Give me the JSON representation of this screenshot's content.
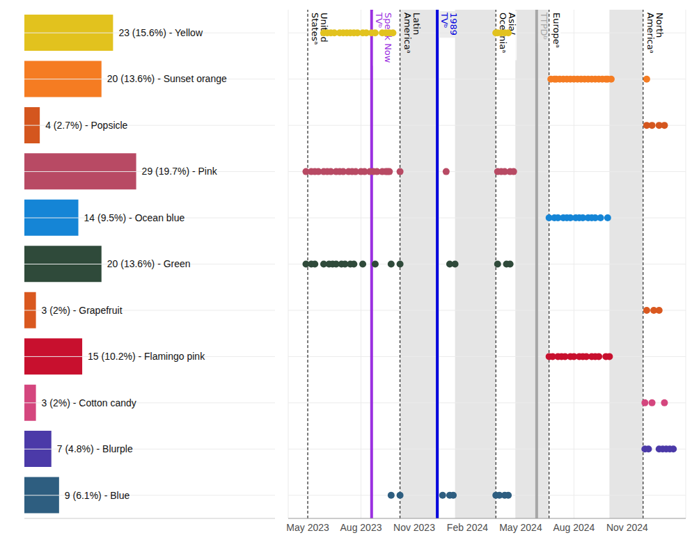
{
  "chart_data": [
    {
      "type": "bar",
      "orientation": "horizontal",
      "data_labels": true,
      "tick_labels": false,
      "grid": true,
      "categories": [
        "Yellow",
        "Sunset orange",
        "Popsicle",
        "Pink",
        "Ocean blue",
        "Green",
        "Grapefruit",
        "Flamingo pink",
        "Cotton candy",
        "Blurple",
        "Blue"
      ],
      "values": [
        23,
        20,
        4,
        29,
        14,
        20,
        3,
        15,
        3,
        7,
        9
      ],
      "value_labels": [
        "23 (15.6%) - Yellow",
        "20 (13.6%) - Sunset orange",
        "4 (2.7%) - Popsicle",
        "29 (19.7%) - Pink",
        "14 (9.5%) - Ocean blue",
        "20 (13.6%) - Green",
        "3 (2%) - Grapefruit",
        "15 (10.2%) - Flamingo pink",
        "3 (2%) - Cotton candy",
        "7 (4.8%) - Blurple",
        "9 (6.1%) - Blue"
      ],
      "colors": [
        "#e2c21e",
        "#f57c22",
        "#d4561e",
        "#b84a64",
        "#1585d6",
        "#2f4a3a",
        "#d9581f",
        "#c8102e",
        "#d4467e",
        "#4b3aa8",
        "#2e5e80"
      ],
      "xlim": [
        0,
        65
      ]
    },
    {
      "type": "scatter",
      "grid": true,
      "tick_labels": "x",
      "xlim": [
        2.9,
        25.3
      ],
      "xticks": [
        {
          "value": 4,
          "label": "May 2023"
        },
        {
          "value": 7,
          "label": "Aug 2023"
        },
        {
          "value": 10,
          "label": "Nov 2023"
        },
        {
          "value": 13,
          "label": "Feb 2024"
        },
        {
          "value": 16,
          "label": "May 2024"
        },
        {
          "value": 19,
          "label": "Aug 2024"
        },
        {
          "value": 22,
          "label": "Nov 2024"
        }
      ],
      "series": [
        {
          "name": "Yellow",
          "color": "#e2c21e",
          "values": [
            4.9,
            5.1,
            5.3,
            5.5,
            5.8,
            6.0,
            6.2,
            6.4,
            6.6,
            6.8,
            7.1,
            7.3,
            7.6,
            7.8,
            8.2,
            8.4,
            8.6,
            8.8,
            14.6,
            14.7,
            14.9,
            15.1,
            15.3
          ]
        },
        {
          "name": "Sunset orange",
          "color": "#f57c22",
          "values": [
            17.7,
            17.9,
            18.0,
            18.2,
            18.4,
            18.6,
            18.8,
            19.0,
            19.2,
            19.4,
            19.6,
            19.8,
            20.0,
            20.2,
            20.4,
            20.6,
            20.8,
            20.9,
            21.1,
            23.1
          ]
        },
        {
          "name": "Popsicle",
          "color": "#d4561e",
          "values": [
            23.1,
            23.4,
            23.8,
            24.1
          ]
        },
        {
          "name": "Pink",
          "color": "#b84a64",
          "values": [
            3.9,
            4.2,
            4.4,
            4.6,
            4.9,
            5.1,
            5.3,
            5.6,
            5.8,
            6.0,
            6.3,
            6.5,
            6.7,
            7.0,
            7.2,
            7.5,
            7.7,
            7.9,
            8.2,
            8.4,
            8.5,
            8.6,
            9.2,
            11.8,
            14.7,
            14.9,
            15.1,
            15.4,
            15.6
          ]
        },
        {
          "name": "Ocean blue",
          "color": "#1585d6",
          "values": [
            17.6,
            17.9,
            18.1,
            18.4,
            18.6,
            18.8,
            19.1,
            19.3,
            19.5,
            19.8,
            20.0,
            20.2,
            20.5,
            20.9
          ]
        },
        {
          "name": "Green",
          "color": "#2f4a3a",
          "values": [
            3.9,
            4.2,
            4.4,
            4.9,
            5.2,
            5.4,
            5.6,
            5.9,
            6.1,
            6.4,
            6.6,
            7.1,
            7.8,
            8.7,
            9.2,
            12.0,
            12.3,
            14.7,
            15.2,
            15.4
          ]
        },
        {
          "name": "Grapefruit",
          "color": "#d9581f",
          "values": [
            23.1,
            23.5,
            23.8
          ]
        },
        {
          "name": "Flamingo pink",
          "color": "#c8102e",
          "values": [
            17.6,
            17.8,
            18.1,
            18.3,
            18.5,
            18.8,
            19.0,
            19.3,
            19.5,
            19.7,
            20.0,
            20.2,
            20.4,
            20.8,
            21.0
          ]
        },
        {
          "name": "Cotton candy",
          "color": "#d4467e",
          "values": [
            23.0,
            23.4,
            24.1
          ]
        },
        {
          "name": "Blurple",
          "color": "#4b3aa8",
          "values": [
            23.0,
            23.2,
            23.8,
            24.0,
            24.2,
            24.4,
            24.6
          ]
        },
        {
          "name": "Blue",
          "color": "#2e5e80",
          "values": [
            8.7,
            9.2,
            11.6,
            12.0,
            12.2,
            14.6,
            14.8,
            15.1,
            15.3
          ]
        }
      ],
      "shaded_periods": [
        [
          9.2,
          11.4
        ],
        [
          12.3,
          14.6
        ],
        [
          15.7,
          17.6
        ],
        [
          21.0,
          22.9
        ]
      ],
      "events": [
        {
          "label": "United Statesᵃ",
          "x": 4.0,
          "color": "#000000",
          "line_style": "dashed"
        },
        {
          "label": "Speak Now TVᵇ",
          "x": 7.6,
          "color": "#9b30e0",
          "line_style": "solid"
        },
        {
          "label": "Latin Americaᵃ",
          "x": 9.2,
          "color": "#000000",
          "line_style": "dashed"
        },
        {
          "label": "1989 TVᵇ",
          "x": 11.3,
          "color": "#0000dd",
          "line_style": "solid"
        },
        {
          "label": "Asia/ Oceaniaᵃ",
          "x": 14.6,
          "color": "#000000",
          "line_style": "dashed"
        },
        {
          "label": "TTPDᵇ",
          "x": 16.9,
          "color": "#a6a6a6",
          "line_style": "solid"
        },
        {
          "label": "Europeᵃ",
          "x": 17.6,
          "color": "#000000",
          "line_style": "dashed"
        },
        {
          "label": "North Americaᵃ",
          "x": 22.9,
          "color": "#000000",
          "line_style": "dashed"
        }
      ]
    }
  ]
}
